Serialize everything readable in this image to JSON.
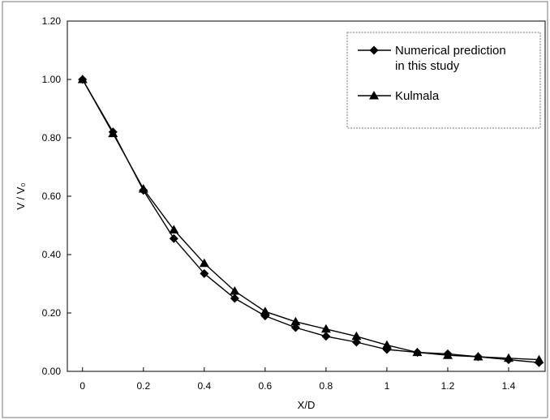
{
  "chart_data": {
    "type": "line",
    "title": "",
    "xlabel": "X/D",
    "ylabel": "V / V₀",
    "xlim": [
      -0.05,
      1.52
    ],
    "ylim": [
      0,
      1.2
    ],
    "x_ticks": [
      "0",
      "0.2",
      "0.4",
      "0.6",
      "0.8",
      "1",
      "1.2",
      "1.4"
    ],
    "x_tick_values": [
      0,
      0.2,
      0.4,
      0.6,
      0.8,
      1.0,
      1.2,
      1.4
    ],
    "y_ticks": [
      "0.00",
      "0.20",
      "0.40",
      "0.60",
      "0.80",
      "1.00",
      "1.20"
    ],
    "y_tick_values": [
      0,
      0.2,
      0.4,
      0.6,
      0.8,
      1.0,
      1.2
    ],
    "grid": false,
    "legend_position": "top-right",
    "x": [
      0,
      0.1,
      0.2,
      0.3,
      0.4,
      0.5,
      0.6,
      0.7,
      0.8,
      0.9,
      1.0,
      1.1,
      1.2,
      1.3,
      1.4,
      1.5
    ],
    "series": [
      {
        "name": "Numerical prediction in this study",
        "legend_lines": [
          "Numerical prediction",
          "in this study"
        ],
        "marker": "diamond",
        "values": [
          1.0,
          0.82,
          0.62,
          0.455,
          0.335,
          0.25,
          0.19,
          0.15,
          0.12,
          0.1,
          0.075,
          0.065,
          0.06,
          0.05,
          0.04,
          0.03
        ]
      },
      {
        "name": "Kulmala",
        "legend_lines": [
          "Kulmala"
        ],
        "marker": "triangle",
        "values": [
          1.0,
          0.815,
          0.625,
          0.485,
          0.37,
          0.275,
          0.205,
          0.17,
          0.145,
          0.12,
          0.09,
          0.065,
          0.055,
          0.05,
          0.045,
          0.04
        ]
      }
    ]
  }
}
